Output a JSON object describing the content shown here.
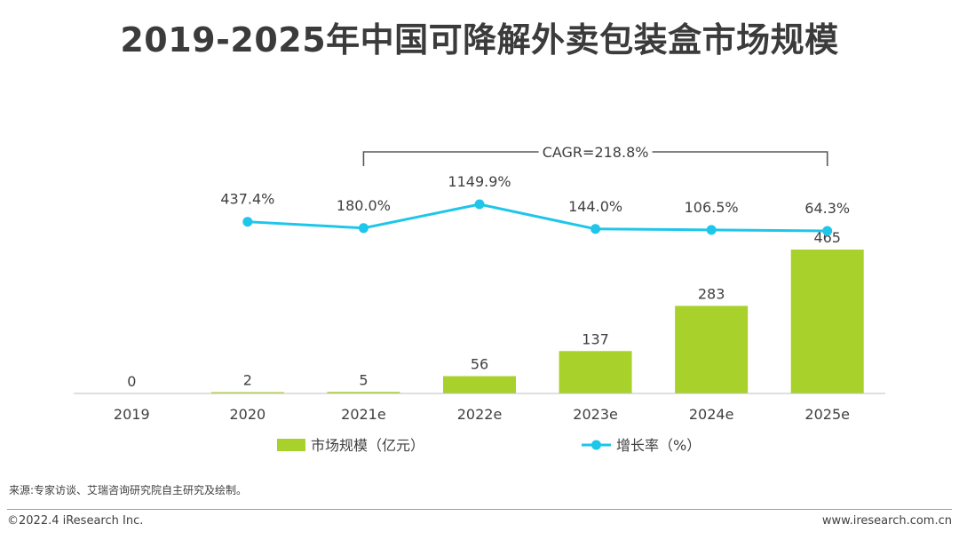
{
  "page": {
    "title": "2019-2025年中国可降解外卖包装盒市场规模",
    "source": "来源:专家访谈、艾瑞咨询研究院自主研究及绘制。",
    "copyright": "©2022.4 iResearch Inc.",
    "website": "www.iresearch.com.cn"
  },
  "colors": {
    "bar": "#a8d12c",
    "line": "#1ec6ea",
    "axis": "#bfbfbf",
    "text": "#404040",
    "bracket": "#595959"
  },
  "chart_data": {
    "type": "bar+line",
    "categories": [
      "2019",
      "2020",
      "2021e",
      "2022e",
      "2023e",
      "2024e",
      "2025e"
    ],
    "series": [
      {
        "name": "市场规模（亿元）",
        "type": "bar",
        "values": [
          0,
          2,
          5,
          56,
          137,
          283,
          465
        ],
        "labels": [
          "0",
          "2",
          "5",
          "56",
          "137",
          "283",
          "465"
        ]
      },
      {
        "name": "增长率（%）",
        "type": "line",
        "values": [
          null,
          437.4,
          180.0,
          1149.9,
          144.0,
          106.5,
          64.3
        ],
        "labels": [
          null,
          "437.4%",
          "180.0%",
          "1149.9%",
          "144.0%",
          "106.5%",
          "64.3%"
        ]
      }
    ],
    "bar_ylim": [
      0,
      465
    ],
    "annotation": {
      "text": "CAGR=218.8%",
      "from": "2021e",
      "to": "2025e"
    },
    "legend_position": "bottom",
    "grid": false
  }
}
